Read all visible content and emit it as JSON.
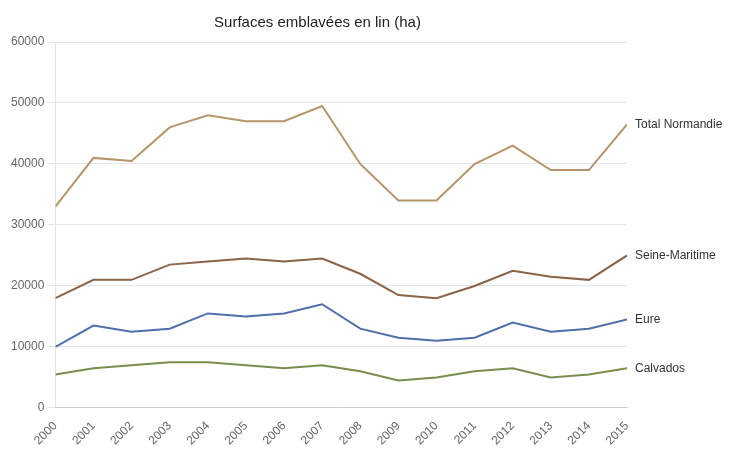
{
  "chart_data": {
    "type": "line",
    "title": "Surfaces emblavées en lin (ha)",
    "x": [
      2000,
      2001,
      2002,
      2003,
      2004,
      2005,
      2006,
      2007,
      2008,
      2009,
      2010,
      2011,
      2012,
      2013,
      2014,
      2015
    ],
    "series": [
      {
        "name": "Total Normandie",
        "color": "#b5956a",
        "values": [
          33000,
          41000,
          40500,
          46000,
          48000,
          47000,
          47000,
          49500,
          40000,
          34000,
          34000,
          40000,
          43000,
          39000,
          39000,
          46500
        ]
      },
      {
        "name": "Seine-Maritime",
        "color": "#8b6347",
        "values": [
          18000,
          21000,
          21000,
          23500,
          24000,
          24500,
          24000,
          24500,
          22000,
          18500,
          18000,
          20000,
          22500,
          21500,
          21000,
          25000
        ]
      },
      {
        "name": "Eure",
        "color": "#4f6faa",
        "values": [
          10000,
          13500,
          12500,
          13000,
          15500,
          15000,
          15500,
          17000,
          13000,
          11500,
          11000,
          11500,
          14000,
          12500,
          13000,
          14500
        ]
      },
      {
        "name": "Calvados",
        "color": "#7a8c4e",
        "values": [
          5500,
          6500,
          7000,
          7500,
          7500,
          7000,
          6500,
          7000,
          6000,
          4500,
          5000,
          6000,
          6500,
          5000,
          5500,
          6500
        ]
      }
    ],
    "xlim": [
      2000,
      2015
    ],
    "xticks": [
      2000,
      2001,
      2002,
      2003,
      2004,
      2005,
      2006,
      2007,
      2008,
      2009,
      2010,
      2011,
      2012,
      2013,
      2014,
      2015
    ],
    "ylim": [
      0,
      60000
    ],
    "yticks": [
      0,
      10000,
      20000,
      30000,
      40000,
      50000,
      60000
    ],
    "grid": "y"
  }
}
